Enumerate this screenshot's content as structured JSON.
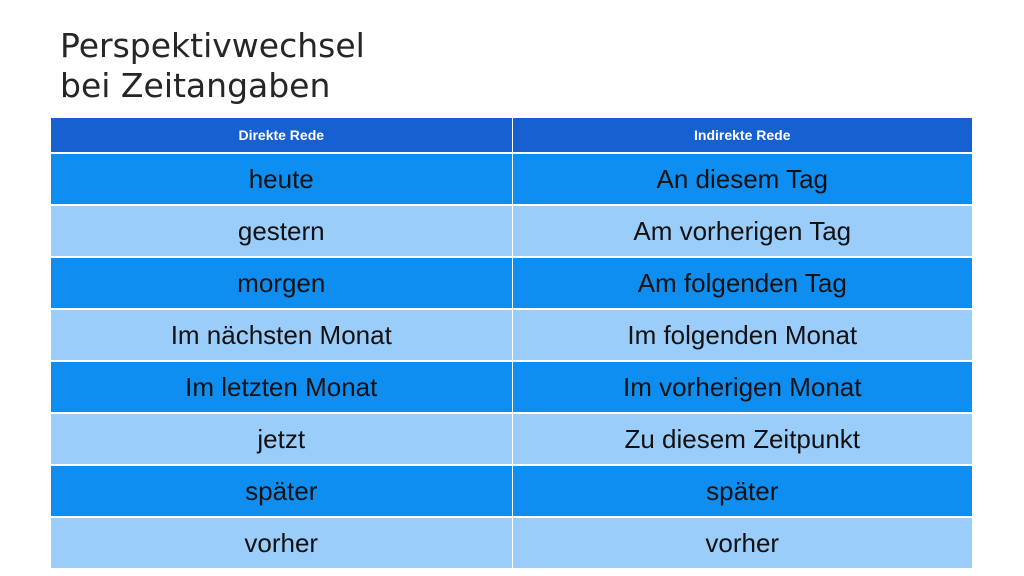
{
  "slide": {
    "title_line1": "Perspektivwechsel",
    "title_line2": "bei Zeitangaben"
  },
  "table": {
    "headers": [
      "Direkte Rede",
      "Indirekte Rede"
    ],
    "rows": [
      [
        "heute",
        "An diesem Tag"
      ],
      [
        "gestern",
        "Am vorherigen Tag"
      ],
      [
        "morgen",
        "Am folgenden Tag"
      ],
      [
        "Im nächsten Monat",
        "Im folgenden Monat"
      ],
      [
        "Im letzten Monat",
        "Im vorherigen Monat"
      ],
      [
        "jetzt",
        "Zu diesem Zeitpunkt"
      ],
      [
        "später",
        "später"
      ],
      [
        "vorher",
        "vorher"
      ]
    ],
    "colors": {
      "header": "#1760d1",
      "row_dark": "#0e8ef0",
      "row_light": "#9bcdfb"
    }
  }
}
